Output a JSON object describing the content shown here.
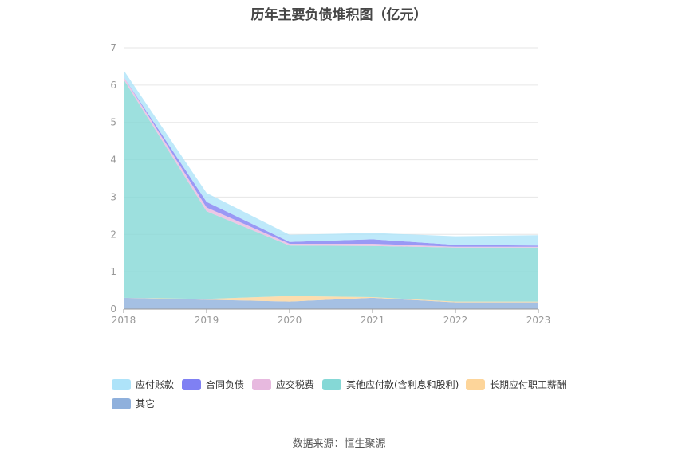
{
  "chart_data": {
    "type": "area",
    "stacked": true,
    "title": "历年主要负债堆积图（亿元）",
    "xlabel": "",
    "ylabel": "",
    "categories": [
      "2018",
      "2019",
      "2020",
      "2021",
      "2022",
      "2023"
    ],
    "y_ticks": [
      "0",
      "1",
      "2",
      "3",
      "4",
      "5",
      "6",
      "7"
    ],
    "ylim": [
      0,
      7
    ],
    "grid": true,
    "legend_position": "bottom",
    "series": [
      {
        "name": "其它",
        "color": "#8fb0dc",
        "values": [
          0.3,
          0.25,
          0.2,
          0.3,
          0.18,
          0.18
        ]
      },
      {
        "name": "长期应付职工薪酬",
        "color": "#fdd59a",
        "values": [
          0.0,
          0.02,
          0.15,
          0.02,
          0.02,
          0.02
        ]
      },
      {
        "name": "其他应付款(含利息和股利)",
        "color": "#85d8d6",
        "values": [
          5.85,
          2.35,
          1.35,
          1.37,
          1.45,
          1.45
        ]
      },
      {
        "name": "应交税费",
        "color": "#e7b9df",
        "values": [
          0.07,
          0.1,
          0.05,
          0.06,
          0.02,
          0.02
        ]
      },
      {
        "name": "合同负债",
        "color": "#7f80f3",
        "values": [
          0.0,
          0.15,
          0.05,
          0.12,
          0.05,
          0.03
        ]
      },
      {
        "name": "应付账款",
        "color": "#aee3f9",
        "values": [
          0.18,
          0.24,
          0.19,
          0.17,
          0.23,
          0.28
        ]
      }
    ],
    "legend_order": [
      "应付账款",
      "合同负债",
      "应交税费",
      "其他应付款(含利息和股利)",
      "长期应付职工薪酬",
      "其它"
    ]
  },
  "source_text": "数据来源：恒生聚源"
}
